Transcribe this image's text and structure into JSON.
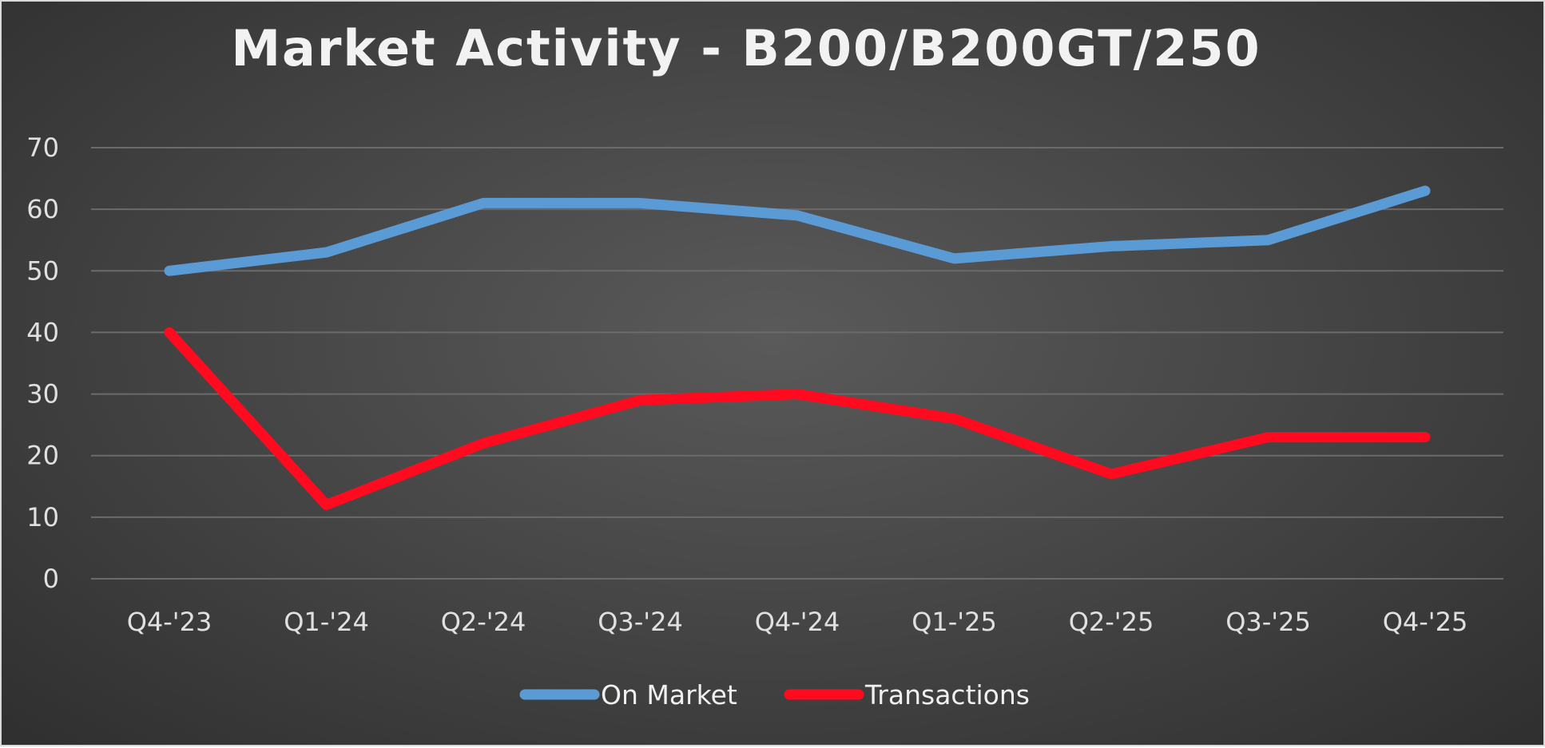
{
  "chart_data": {
    "type": "line",
    "title": "Market Activity - B200/B200GT/250",
    "categories": [
      "Q4-'23",
      "Q1-'24",
      "Q2-'24",
      "Q3-'24",
      "Q4-'24",
      "Q1-'25",
      "Q2-'25",
      "Q3-'25",
      "Q4-'25"
    ],
    "y_ticks": [
      "0",
      "10",
      "20",
      "30",
      "40",
      "50",
      "60",
      "70"
    ],
    "ylim": [
      0,
      70
    ],
    "grid": true,
    "legend_position": "bottom",
    "series": [
      {
        "name": "On Market",
        "color": "#5b9bd5",
        "values": [
          50,
          53,
          61,
          61,
          59,
          52,
          54,
          55,
          63
        ]
      },
      {
        "name": "Transactions",
        "color": "#ff0a1e",
        "values": [
          40,
          12,
          22,
          29,
          30,
          26,
          17,
          23,
          23
        ]
      }
    ]
  }
}
